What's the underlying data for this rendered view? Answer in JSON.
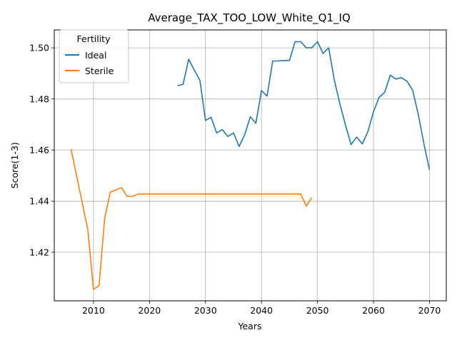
{
  "chart_data": {
    "type": "line",
    "title": "Average_TAX_TOO_LOW_White_Q1_IQ",
    "xlabel": "Years",
    "ylabel": "Score(1-3)",
    "xlim": [
      2003,
      2073
    ],
    "ylim": [
      1.401,
      1.507
    ],
    "xticks": [
      2010,
      2020,
      2030,
      2040,
      2050,
      2060,
      2070
    ],
    "xtick_labels": [
      "2010",
      "2020",
      "2030",
      "2040",
      "2050",
      "2060",
      "2070"
    ],
    "yticks": [
      1.42,
      1.44,
      1.46,
      1.48,
      1.5
    ],
    "ytick_labels": [
      "1.42",
      "1.44",
      "1.46",
      "1.48",
      "1.50"
    ],
    "grid": true,
    "legend": {
      "title": "Fertility",
      "placement": "upper left"
    },
    "series": [
      {
        "name": "Ideal",
        "color": "#1f77b4",
        "x": [
          2025,
          2026,
          2027,
          2028,
          2029,
          2030,
          2031,
          2032,
          2033,
          2034,
          2035,
          2036,
          2037,
          2038,
          2039,
          2040,
          2041,
          2042,
          2043,
          2044,
          2045,
          2046,
          2047,
          2048,
          2049,
          2050,
          2051,
          2052,
          2053,
          2054,
          2055,
          2056,
          2057,
          2058,
          2059,
          2060,
          2061,
          2062,
          2063,
          2064,
          2065,
          2066,
          2067,
          2068,
          2069,
          2070
        ],
        "y": [
          1.4852,
          1.4857,
          1.4955,
          1.4913,
          1.4873,
          1.4716,
          1.4728,
          1.4667,
          1.468,
          1.4653,
          1.4667,
          1.4614,
          1.466,
          1.473,
          1.4705,
          1.4833,
          1.4811,
          1.4948,
          1.4949,
          1.495,
          1.4951,
          1.5024,
          1.5024,
          1.5,
          1.5,
          1.5024,
          1.4978,
          1.5,
          1.4875,
          1.478,
          1.4698,
          1.4621,
          1.4651,
          1.4624,
          1.4672,
          1.475,
          1.4806,
          1.4826,
          1.4893,
          1.4878,
          1.4883,
          1.4869,
          1.4834,
          1.4739,
          1.4625,
          1.4523
        ]
      },
      {
        "name": "Sterile",
        "color": "#ff7f0e",
        "x": [
          2006,
          2007,
          2008,
          2009,
          2010,
          2011,
          2012,
          2013,
          2014,
          2015,
          2016,
          2017,
          2018,
          2019,
          2020,
          2021,
          2022,
          2023,
          2024,
          2025,
          2026,
          2027,
          2028,
          2029,
          2030,
          2031,
          2032,
          2033,
          2034,
          2035,
          2036,
          2037,
          2038,
          2039,
          2040,
          2041,
          2042,
          2043,
          2044,
          2045,
          2046,
          2047,
          2048,
          2049
        ],
        "y": [
          1.4603,
          1.4498,
          1.4393,
          1.4287,
          1.4055,
          1.4069,
          1.4333,
          1.4435,
          1.4444,
          1.4453,
          1.4419,
          1.4419,
          1.4428,
          1.4428,
          1.4428,
          1.4428,
          1.4428,
          1.4428,
          1.4428,
          1.4428,
          1.4428,
          1.4428,
          1.4428,
          1.4428,
          1.4428,
          1.4428,
          1.4428,
          1.4428,
          1.4428,
          1.4428,
          1.4428,
          1.4428,
          1.4428,
          1.4428,
          1.4428,
          1.4428,
          1.4428,
          1.4428,
          1.4428,
          1.4428,
          1.4428,
          1.4428,
          1.4381,
          1.4414
        ]
      }
    ]
  }
}
